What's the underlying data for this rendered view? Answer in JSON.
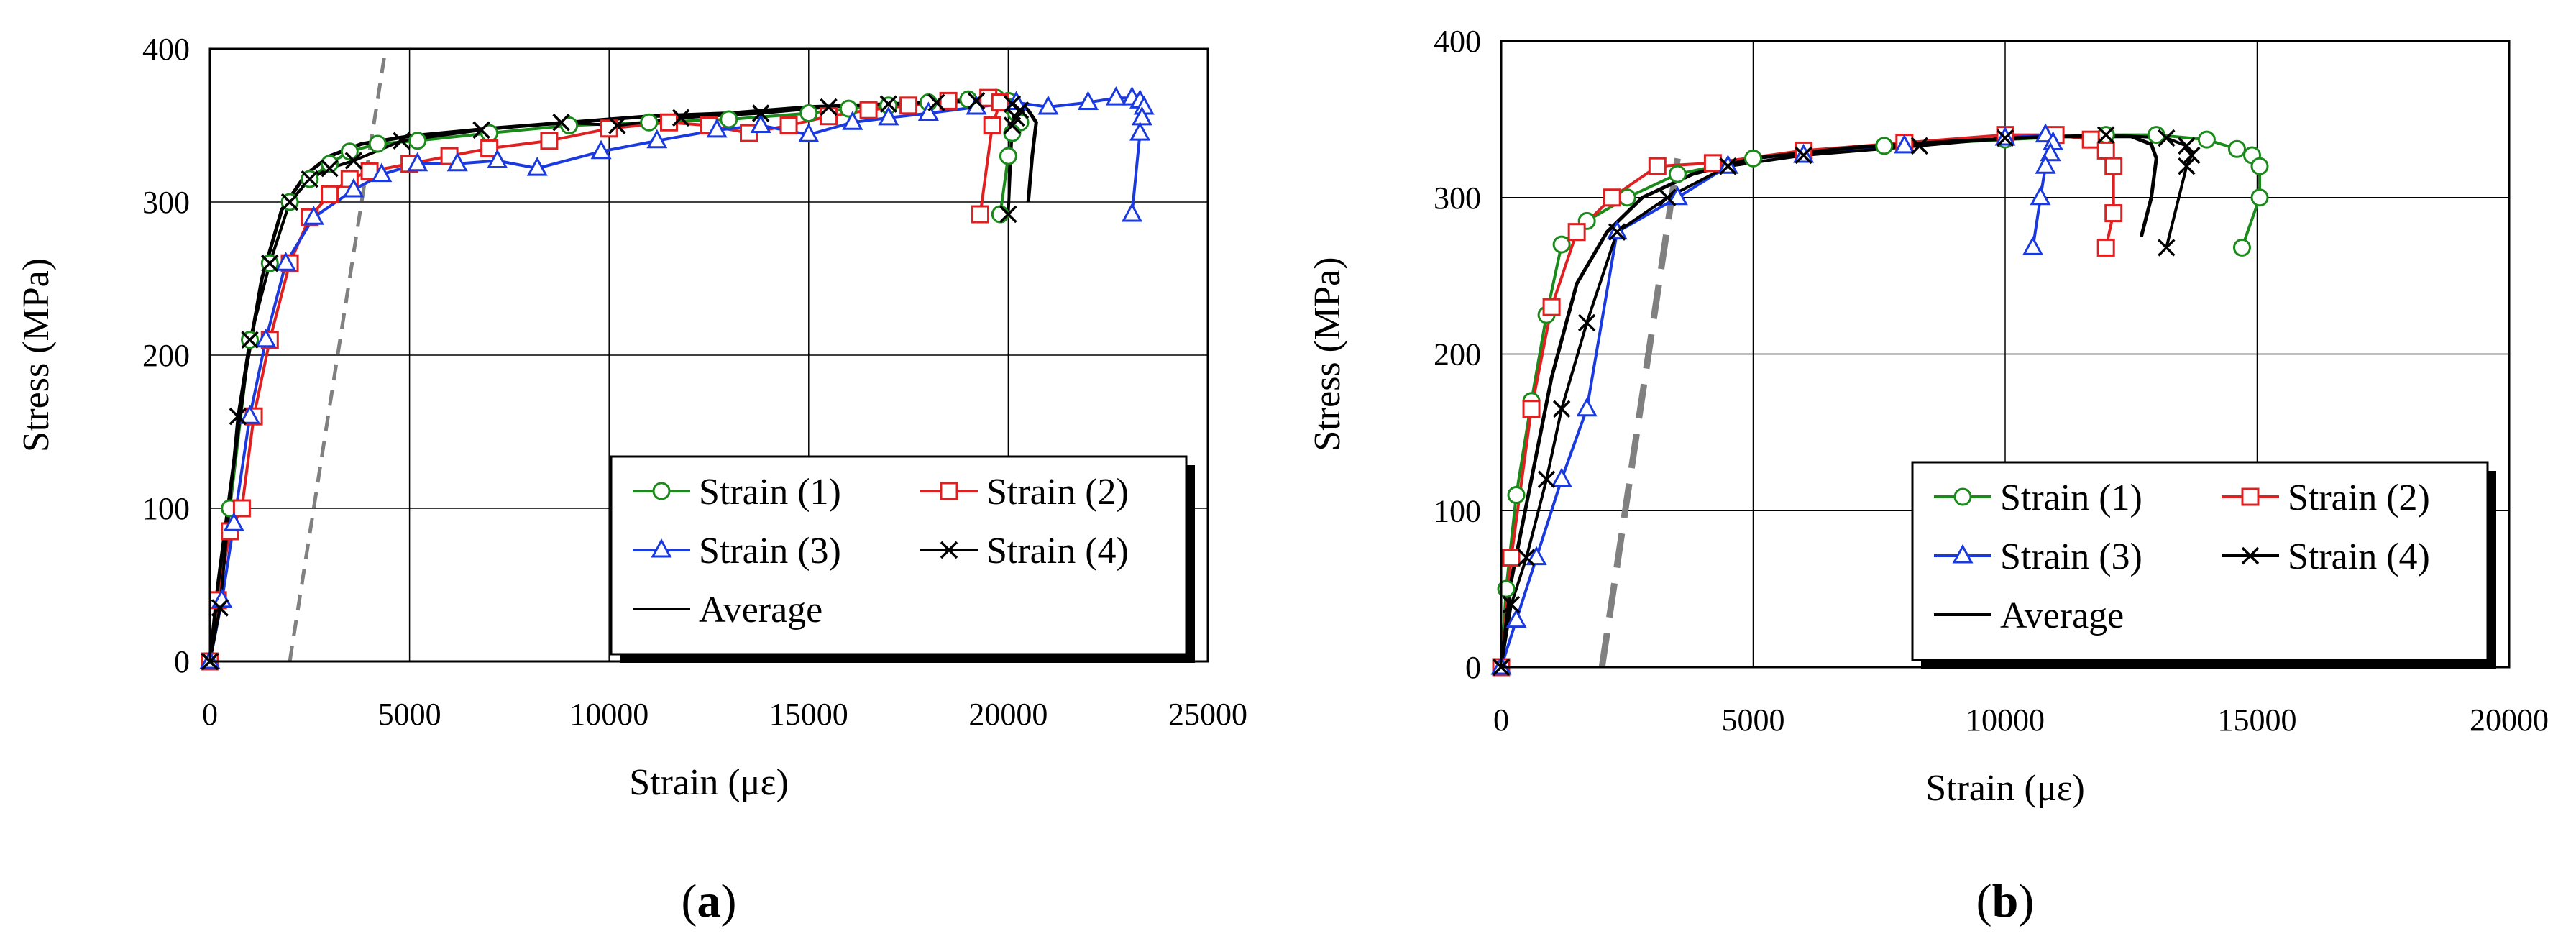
{
  "chart_data": [
    {
      "type": "line",
      "panel": "(a)",
      "panel_parts": [
        "(",
        "a",
        ")"
      ],
      "xlabel": "Strain (με)",
      "ylabel": "Stress (MPa)",
      "xlim": [
        0,
        25000
      ],
      "ylim": [
        0,
        400
      ],
      "xticks": [
        0,
        5000,
        10000,
        15000,
        20000,
        25000
      ],
      "yticks": [
        0,
        100,
        200,
        300,
        400
      ],
      "grid": true,
      "legend_position": "bottom-right",
      "reference_line": {
        "name": "offset line",
        "style": "dashed",
        "color": "#808080",
        "x": [
          2000,
          4400
        ],
        "y": [
          0,
          400
        ]
      },
      "series": [
        {
          "name": "Strain (1)",
          "color": "#1a8a1a",
          "marker": "circle",
          "x": [
            0,
            200,
            500,
            1000,
            1500,
            2000,
            2500,
            3000,
            3500,
            4200,
            5200,
            7000,
            9000,
            11000,
            13000,
            15000,
            16000,
            17000,
            18000,
            19000,
            19700,
            20000,
            20100,
            20200,
            20300,
            20100,
            20000,
            19800
          ],
          "y": [
            0,
            40,
            100,
            210,
            260,
            300,
            315,
            325,
            333,
            338,
            340,
            345,
            350,
            352,
            354,
            358,
            361,
            363,
            365,
            367,
            368,
            366,
            362,
            358,
            352,
            345,
            330,
            292
          ]
        },
        {
          "name": "Strain (2)",
          "color": "#e02020",
          "marker": "square",
          "x": [
            0,
            200,
            500,
            800,
            1100,
            1500,
            2000,
            2500,
            3000,
            3500,
            4000,
            5000,
            6000,
            7000,
            8500,
            10000,
            11500,
            12500,
            13500,
            14500,
            15500,
            16500,
            17500,
            18500,
            19500,
            19800,
            19600,
            19300
          ],
          "y": [
            0,
            40,
            85,
            100,
            160,
            210,
            260,
            290,
            305,
            315,
            320,
            325,
            330,
            335,
            340,
            348,
            352,
            350,
            345,
            350,
            356,
            360,
            363,
            366,
            368,
            365,
            350,
            292
          ]
        },
        {
          "name": "Strain (3)",
          "color": "#1a3ae0",
          "marker": "triangle",
          "x": [
            0,
            300,
            600,
            1000,
            1400,
            1900,
            2600,
            3600,
            4300,
            5200,
            6200,
            7200,
            8200,
            9800,
            11200,
            12700,
            13800,
            15000,
            16100,
            17000,
            18000,
            19200,
            20200,
            21000,
            22000,
            22700,
            23100,
            23300,
            23400,
            23350,
            23300,
            23100
          ],
          "y": [
            0,
            40,
            90,
            160,
            210,
            260,
            290,
            308,
            318,
            325,
            325,
            327,
            322,
            333,
            340,
            347,
            350,
            344,
            352,
            355,
            358,
            362,
            365,
            362,
            365,
            368,
            368,
            366,
            362,
            355,
            345,
            292
          ]
        },
        {
          "name": "Strain (4)",
          "color": "#000000",
          "marker": "x",
          "x": [
            0,
            250,
            700,
            1000,
            1500,
            2000,
            2500,
            3000,
            3600,
            4800,
            6800,
            8800,
            10200,
            11800,
            13800,
            15500,
            17000,
            18200,
            19200,
            20100,
            20300,
            20200,
            20100,
            20000
          ],
          "y": [
            0,
            35,
            160,
            210,
            260,
            300,
            315,
            322,
            327,
            340,
            347,
            352,
            350,
            355,
            358,
            362,
            364,
            365,
            366,
            364,
            360,
            355,
            350,
            292
          ]
        },
        {
          "name": "Average",
          "color": "#000000",
          "marker": "none",
          "x": [
            0,
            200,
            500,
            900,
            1300,
            1800,
            2400,
            3000,
            3800,
            5000,
            7000,
            9000,
            11000,
            13000,
            15000,
            17000,
            19000,
            20200,
            20500,
            20700,
            20600,
            20500
          ],
          "y": [
            0,
            50,
            110,
            190,
            250,
            295,
            318,
            330,
            338,
            343,
            348,
            352,
            356,
            358,
            362,
            364,
            366,
            366,
            360,
            352,
            330,
            300
          ]
        }
      ]
    },
    {
      "type": "line",
      "panel": "(b)",
      "panel_parts": [
        "(",
        "b",
        ")"
      ],
      "xlabel": "Strain (με)",
      "ylabel": "Stress (MPa)",
      "xlim": [
        0,
        20000
      ],
      "ylim": [
        0,
        400
      ],
      "xticks": [
        0,
        5000,
        10000,
        15000,
        20000
      ],
      "yticks": [
        0,
        100,
        200,
        300,
        400
      ],
      "grid": true,
      "legend_position": "bottom-right",
      "reference_line": {
        "name": "offset line",
        "style": "dashed",
        "color": "#808080",
        "x": [
          2000,
          3500
        ],
        "y": [
          0,
          325
        ]
      },
      "series": [
        {
          "name": "Strain (1)",
          "color": "#1a8a1a",
          "marker": "circle",
          "x": [
            0,
            100,
            300,
            600,
            900,
            1200,
            1700,
            2500,
            3500,
            5000,
            7600,
            10000,
            12000,
            13000,
            14000,
            14600,
            14900,
            15050,
            15050,
            14700
          ],
          "y": [
            0,
            50,
            110,
            170,
            225,
            270,
            285,
            300,
            315,
            325,
            333,
            337,
            340,
            340,
            337,
            331,
            327,
            320,
            300,
            268
          ]
        },
        {
          "name": "Strain (2)",
          "color": "#e02020",
          "marker": "square",
          "x": [
            0,
            200,
            600,
            1000,
            1500,
            2200,
            3100,
            4200,
            6000,
            8000,
            10000,
            11000,
            11700,
            12000,
            12150,
            12150,
            12000
          ],
          "y": [
            0,
            70,
            165,
            230,
            278,
            300,
            320,
            322,
            330,
            335,
            340,
            340,
            337,
            330,
            320,
            290,
            268
          ]
        },
        {
          "name": "Strain (3)",
          "color": "#1a3ae0",
          "marker": "triangle",
          "x": [
            0,
            300,
            700,
            1200,
            1700,
            2300,
            3500,
            4500,
            6000,
            8000,
            10000,
            10800,
            10950,
            10900,
            10800,
            10700,
            10550
          ],
          "y": [
            0,
            30,
            70,
            120,
            165,
            278,
            300,
            320,
            327,
            333,
            338,
            340,
            335,
            328,
            320,
            300,
            268
          ]
        },
        {
          "name": "Strain (4)",
          "color": "#000000",
          "marker": "x",
          "x": [
            0,
            200,
            500,
            900,
            1200,
            1700,
            2300,
            3300,
            4500,
            6000,
            8300,
            10000,
            12000,
            13200,
            13600,
            13700,
            13600,
            13200
          ],
          "y": [
            0,
            40,
            70,
            120,
            165,
            220,
            278,
            300,
            320,
            327,
            333,
            338,
            340,
            338,
            333,
            327,
            320,
            268
          ]
        },
        {
          "name": "Average",
          "color": "#000000",
          "marker": "none",
          "x": [
            0,
            200,
            600,
            1000,
            1500,
            2100,
            2800,
            3800,
            5000,
            7000,
            9000,
            11000,
            12500,
            12900,
            13000,
            12900,
            12700
          ],
          "y": [
            0,
            55,
            120,
            185,
            245,
            278,
            300,
            315,
            325,
            332,
            336,
            339,
            339,
            334,
            325,
            300,
            275
          ]
        }
      ]
    }
  ]
}
